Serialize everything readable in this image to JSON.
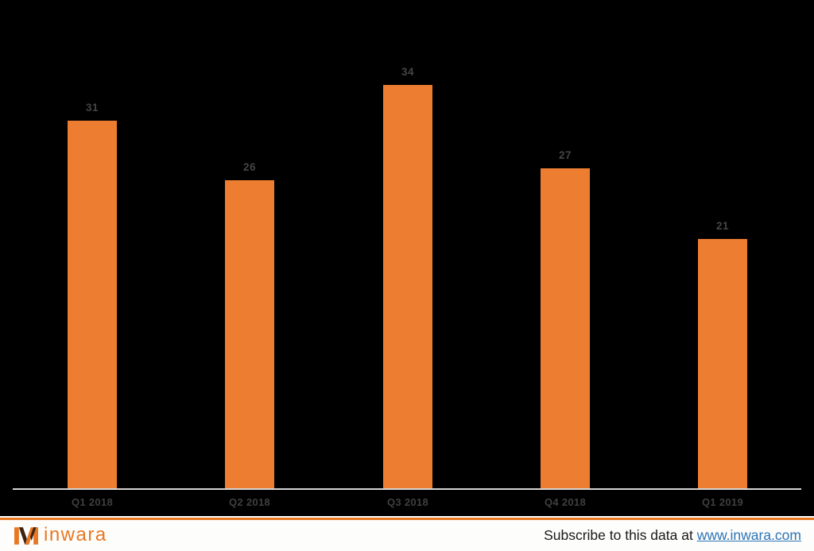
{
  "chart_data": {
    "type": "bar",
    "categories": [
      "Q1 2018",
      "Q2 2018",
      "Q3 2018",
      "Q4 2018",
      "Q1 2019"
    ],
    "values": [
      31,
      26,
      34,
      27,
      21
    ],
    "title": "",
    "xlabel": "",
    "ylabel": "",
    "ylim": [
      0,
      40
    ],
    "grid": false,
    "legend": false,
    "data_labels_shown": true,
    "bar_color": "#ED7D31",
    "value_label_color": "#454545",
    "category_label_color": "#3F3F3F",
    "axis_line_color": "#D6D6D6",
    "background_color": "#000000"
  },
  "footer": {
    "logo_text": "inwara",
    "logo_color": "#E87722",
    "logo_icon": "inwara-m-monogram",
    "accent_line_color": "#E87722",
    "background_color": "#FDFDFC",
    "subscribe_text": "Subscribe to this data at ",
    "link_text": "www.inwara.com",
    "link_color": "#2E75B6",
    "text_color": "#1A1A1A"
  }
}
